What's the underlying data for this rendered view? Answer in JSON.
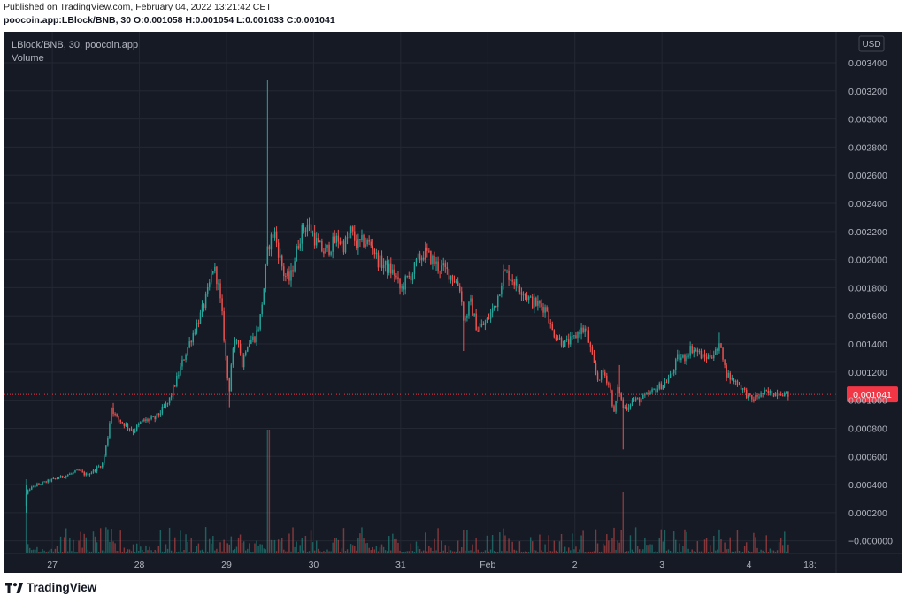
{
  "header": {
    "published": "Published on TradingView.com, February 04, 2022 13:21:42 CET",
    "ohlc": "poocoin.app:LBlock/BNB, 30 O:0.001058 H:0.001054 L:0.001033 C:0.001041"
  },
  "legend": {
    "symbol": "LBlock/BNB, 30, poocoin.app",
    "volume_label": "Volume"
  },
  "currency_badge": "USD",
  "last_price_label": "0.001041",
  "footer": {
    "brand": "TradingView"
  },
  "colors": {
    "background": "#161a25",
    "grid": "#242833",
    "up": "#26a69a",
    "down": "#ef5350",
    "axis_text": "#b2b5be",
    "last_price": "#f23645"
  },
  "chart_data": {
    "type": "candlestick",
    "symbol": "LBlock/BNB",
    "interval": "30",
    "y_axis": {
      "ticks": [
        "0.003400",
        "0.003200",
        "0.003000",
        "0.002800",
        "0.002600",
        "0.002400",
        "0.002200",
        "0.002000",
        "0.001800",
        "0.001600",
        "0.001400",
        "0.001200",
        "0.001000",
        "0.000800",
        "0.000600",
        "0.000400",
        "0.000200",
        "−0.000000"
      ],
      "tick_values": [
        0.0034,
        0.0032,
        0.003,
        0.0028,
        0.0026,
        0.0024,
        0.0022,
        0.002,
        0.0018,
        0.0016,
        0.0014,
        0.0012,
        0.001,
        0.0008,
        0.0006,
        0.0004,
        0.0002,
        0
      ],
      "range": [
        -9e-05,
        0.00362
      ],
      "position": "right"
    },
    "x_axis": {
      "ticks": [
        "27",
        "28",
        "29",
        "30",
        "31",
        "Feb",
        "2",
        "3",
        "4",
        "18:"
      ],
      "tick_days": [
        0.3,
        1.3,
        2.3,
        3.3,
        4.3,
        5.3,
        6.3,
        7.3,
        8.3,
        9.0
      ],
      "range_days": [
        -0.25,
        9.3
      ]
    },
    "grid": true,
    "last_price": 0.001041,
    "price_path": [
      [
        0.0,
        0.00025
      ],
      [
        0.02,
        0.00033
      ],
      [
        0.06,
        0.00037
      ],
      [
        0.15,
        0.0004
      ],
      [
        0.3,
        0.00043
      ],
      [
        0.45,
        0.00046
      ],
      [
        0.55,
        0.00048
      ],
      [
        0.62,
        0.0005
      ],
      [
        0.7,
        0.00047
      ],
      [
        0.78,
        0.00049
      ],
      [
        0.9,
        0.00055
      ],
      [
        0.96,
        0.00075
      ],
      [
        1.0,
        0.00095
      ],
      [
        1.05,
        0.00088
      ],
      [
        1.15,
        0.00083
      ],
      [
        1.25,
        0.00078
      ],
      [
        1.35,
        0.00085
      ],
      [
        1.5,
        0.00087
      ],
      [
        1.65,
        0.00098
      ],
      [
        1.75,
        0.00115
      ],
      [
        1.83,
        0.0013
      ],
      [
        1.92,
        0.00145
      ],
      [
        2.02,
        0.0016
      ],
      [
        2.1,
        0.00175
      ],
      [
        2.17,
        0.00195
      ],
      [
        2.22,
        0.00185
      ],
      [
        2.27,
        0.0016
      ],
      [
        2.32,
        0.00125
      ],
      [
        2.35,
        0.00105
      ],
      [
        2.38,
        0.0013
      ],
      [
        2.45,
        0.00147
      ],
      [
        2.5,
        0.00125
      ],
      [
        2.55,
        0.0014
      ],
      [
        2.65,
        0.00145
      ],
      [
        2.7,
        0.00155
      ],
      [
        2.75,
        0.0018
      ],
      [
        2.8,
        0.0021
      ],
      [
        2.87,
        0.0022
      ],
      [
        2.92,
        0.00205
      ],
      [
        2.98,
        0.0019
      ],
      [
        3.05,
        0.00185
      ],
      [
        3.1,
        0.002
      ],
      [
        3.18,
        0.0022
      ],
      [
        3.25,
        0.00225
      ],
      [
        3.3,
        0.0022
      ],
      [
        3.37,
        0.0021
      ],
      [
        3.45,
        0.00205
      ],
      [
        3.52,
        0.0021
      ],
      [
        3.6,
        0.00215
      ],
      [
        3.67,
        0.0021
      ],
      [
        3.75,
        0.0022
      ],
      [
        3.82,
        0.0021
      ],
      [
        3.9,
        0.00213
      ],
      [
        4.0,
        0.0021
      ],
      [
        4.05,
        0.002
      ],
      [
        4.15,
        0.00195
      ],
      [
        4.25,
        0.0019
      ],
      [
        4.32,
        0.00178
      ],
      [
        4.38,
        0.00185
      ],
      [
        4.45,
        0.0019
      ],
      [
        4.52,
        0.002
      ],
      [
        4.6,
        0.00205
      ],
      [
        4.68,
        0.002
      ],
      [
        4.75,
        0.00195
      ],
      [
        4.85,
        0.00192
      ],
      [
        4.95,
        0.00185
      ],
      [
        5.0,
        0.0018
      ],
      [
        5.05,
        0.00155
      ],
      [
        5.12,
        0.0017
      ],
      [
        5.2,
        0.0015
      ],
      [
        5.3,
        0.00155
      ],
      [
        5.42,
        0.0017
      ],
      [
        5.5,
        0.0019
      ],
      [
        5.55,
        0.0019
      ],
      [
        5.62,
        0.00185
      ],
      [
        5.72,
        0.00178
      ],
      [
        5.82,
        0.0017
      ],
      [
        5.9,
        0.00168
      ],
      [
        6.0,
        0.00165
      ],
      [
        6.05,
        0.0015
      ],
      [
        6.12,
        0.00145
      ],
      [
        6.2,
        0.0014
      ],
      [
        6.3,
        0.00143
      ],
      [
        6.38,
        0.0015
      ],
      [
        6.45,
        0.0015
      ],
      [
        6.52,
        0.0013
      ],
      [
        6.58,
        0.00115
      ],
      [
        6.65,
        0.0012
      ],
      [
        6.72,
        0.0011
      ],
      [
        6.77,
        0.0009
      ],
      [
        6.82,
        0.0011
      ],
      [
        6.87,
        0.00095
      ],
      [
        6.92,
        0.00095
      ],
      [
        6.98,
        0.001
      ],
      [
        7.05,
        0.001
      ],
      [
        7.15,
        0.00103
      ],
      [
        7.25,
        0.00108
      ],
      [
        7.35,
        0.00112
      ],
      [
        7.43,
        0.00118
      ],
      [
        7.5,
        0.0013
      ],
      [
        7.58,
        0.0013
      ],
      [
        7.65,
        0.00137
      ],
      [
        7.72,
        0.00135
      ],
      [
        7.8,
        0.0013
      ],
      [
        7.88,
        0.00132
      ],
      [
        7.96,
        0.00135
      ],
      [
        8.0,
        0.0014
      ],
      [
        8.05,
        0.0012
      ],
      [
        8.12,
        0.00115
      ],
      [
        8.2,
        0.00112
      ],
      [
        8.28,
        0.00105
      ],
      [
        8.35,
        0.001
      ],
      [
        8.42,
        0.00103
      ],
      [
        8.5,
        0.00105
      ],
      [
        8.6,
        0.00105
      ],
      [
        8.68,
        0.00106
      ],
      [
        8.75,
        0.001041
      ]
    ],
    "spikes": [
      {
        "day": 0.0,
        "low": 0.0002,
        "high": 0.0004
      },
      {
        "day": 1.0,
        "high": 0.00098
      },
      {
        "day": 2.33,
        "low": 0.00095
      },
      {
        "day": 2.78,
        "high": 0.00328
      },
      {
        "day": 5.02,
        "low": 0.00135
      },
      {
        "day": 6.85,
        "low": 0.00065
      },
      {
        "day": 6.82,
        "high": 0.00125
      },
      {
        "day": 7.95,
        "high": 0.00148
      }
    ],
    "volume_spikes": [
      {
        "day": 0.0,
        "rel": 0.6
      },
      {
        "day": 2.78,
        "rel": 1.0
      },
      {
        "day": 6.85,
        "rel": 0.5
      }
    ]
  }
}
